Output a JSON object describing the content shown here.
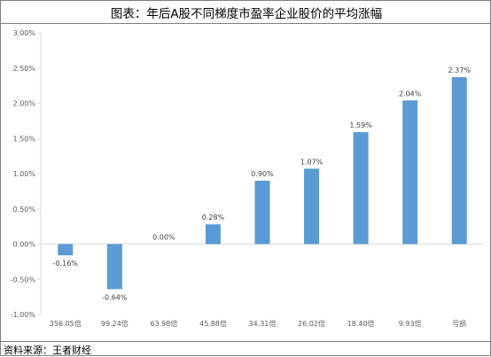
{
  "title": "图表：年后A股不同梯度市盈率企业股价的平均涨幅",
  "source": "资料来源：王者财经",
  "chart_data": {
    "type": "bar",
    "categories": [
      "356.05倍",
      "99.24倍",
      "63.98倍",
      "45.88倍",
      "34.31倍",
      "26.02倍",
      "18.40倍",
      "9.93倍",
      "亏损"
    ],
    "values": [
      -0.16,
      -0.64,
      0.0,
      0.28,
      0.9,
      1.07,
      1.59,
      2.04,
      2.37
    ],
    "data_labels": [
      "-0.16%",
      "-0.64%",
      "0.00%",
      "0.28%",
      "0.90%",
      "1.07%",
      "1.59%",
      "2.04%",
      "2.37%"
    ],
    "y_ticks": [
      3.0,
      2.5,
      2.0,
      1.5,
      1.0,
      0.5,
      0.0,
      -0.5,
      -1.0
    ],
    "y_tick_labels": [
      "3.00%",
      "2.50%",
      "2.00%",
      "1.50%",
      "1.00%",
      "0.50%",
      "0.00%",
      "-0.50%",
      "-1.00%"
    ],
    "ylim": [
      -1.0,
      3.0
    ],
    "grid": false,
    "bar_color": "#5b9bd5",
    "axis_color": "#d9d9d9"
  }
}
